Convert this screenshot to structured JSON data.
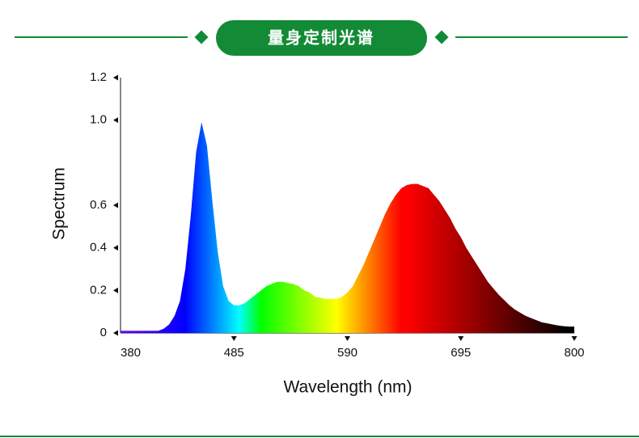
{
  "header": {
    "title": "量身定制光谱"
  },
  "chart_data": {
    "type": "area",
    "x_label": "Wavelength (nm)",
    "y_label": "Spectrum",
    "x": [
      380,
      385,
      390,
      395,
      400,
      405,
      410,
      415,
      420,
      425,
      430,
      435,
      440,
      445,
      450,
      455,
      460,
      465,
      470,
      475,
      480,
      485,
      490,
      495,
      500,
      505,
      510,
      515,
      520,
      525,
      530,
      535,
      540,
      545,
      550,
      555,
      560,
      565,
      570,
      575,
      580,
      585,
      590,
      595,
      600,
      605,
      610,
      615,
      620,
      625,
      630,
      635,
      640,
      645,
      650,
      655,
      660,
      665,
      670,
      675,
      680,
      685,
      690,
      695,
      700,
      705,
      710,
      715,
      720,
      725,
      730,
      735,
      740,
      745,
      750,
      755,
      760,
      765,
      770,
      775,
      780,
      785,
      790,
      795,
      800
    ],
    "values": [
      0.01,
      0.01,
      0.01,
      0.01,
      0.01,
      0.01,
      0.01,
      0.01,
      0.02,
      0.04,
      0.08,
      0.15,
      0.3,
      0.55,
      0.85,
      0.99,
      0.88,
      0.62,
      0.38,
      0.22,
      0.15,
      0.13,
      0.13,
      0.14,
      0.16,
      0.18,
      0.2,
      0.22,
      0.23,
      0.24,
      0.24,
      0.235,
      0.23,
      0.22,
      0.2,
      0.19,
      0.17,
      0.165,
      0.16,
      0.16,
      0.16,
      0.17,
      0.19,
      0.22,
      0.27,
      0.32,
      0.38,
      0.44,
      0.5,
      0.56,
      0.61,
      0.65,
      0.68,
      0.695,
      0.7,
      0.7,
      0.69,
      0.68,
      0.65,
      0.62,
      0.58,
      0.54,
      0.49,
      0.45,
      0.4,
      0.36,
      0.32,
      0.28,
      0.24,
      0.21,
      0.18,
      0.155,
      0.13,
      0.11,
      0.095,
      0.08,
      0.07,
      0.06,
      0.05,
      0.045,
      0.04,
      0.035,
      0.032,
      0.03,
      0.03
    ],
    "xlim": [
      380,
      800
    ],
    "ylim": [
      0,
      1.2
    ],
    "xticks": [
      380,
      485,
      590,
      695,
      800
    ],
    "yticks": [
      0,
      0.2,
      0.4,
      0.6,
      {
        "value": 1,
        "label": "1.0"
      },
      1.2
    ],
    "fill": "spectral"
  }
}
